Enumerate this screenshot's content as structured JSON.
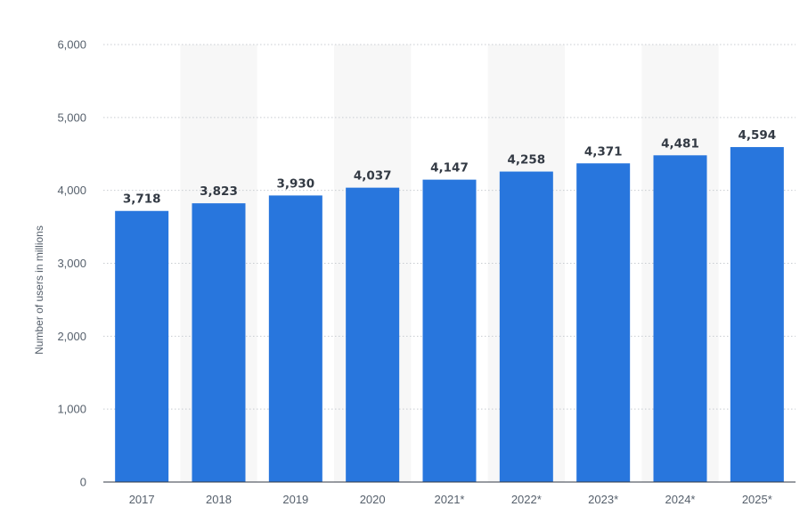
{
  "chart_data": {
    "type": "bar",
    "categories": [
      "2017",
      "2018",
      "2019",
      "2020",
      "2021*",
      "2022*",
      "2023*",
      "2024*",
      "2025*"
    ],
    "values": [
      3718,
      3823,
      3930,
      4037,
      4147,
      4258,
      4371,
      4481,
      4594
    ],
    "value_labels": [
      "3,718",
      "3,823",
      "3,930",
      "4,037",
      "4,147",
      "4,258",
      "4,371",
      "4,481",
      "4,594"
    ],
    "title": "",
    "xlabel": "",
    "ylabel": "Number of users in millions",
    "ylim": [
      0,
      6000
    ],
    "yticks": [
      0,
      1000,
      2000,
      3000,
      4000,
      5000,
      6000
    ],
    "ytick_labels": [
      "0",
      "1,000",
      "2,000",
      "3,000",
      "4,000",
      "5,000",
      "6,000"
    ],
    "grid": true,
    "legend": "none",
    "colors": {
      "bar": "#2876dd",
      "band": "#f7f7f7",
      "grid": "#c8ccd1",
      "text": "#555f6b",
      "label": "#333a44"
    }
  }
}
